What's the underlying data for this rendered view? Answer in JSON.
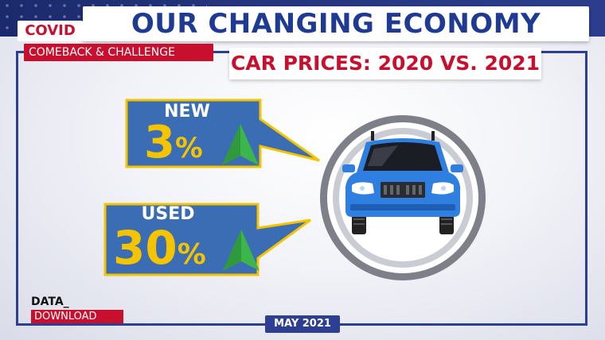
{
  "header": {
    "title": "OUR CHANGING ECONOMY",
    "badge": "COVID",
    "series": "COMEBACK & CHALLENGE"
  },
  "subtitle": "CAR PRICES: 2020 VS. 2021",
  "stats": {
    "new": {
      "label": "NEW",
      "value": "3",
      "unit": "%"
    },
    "used": {
      "label": "USED",
      "value": "30",
      "unit": "%"
    }
  },
  "footer": {
    "brand_top": "DATA_",
    "brand_bottom": "DOWNLOAD",
    "date": "MAY 2021"
  },
  "colors": {
    "navy": "#2c3f93",
    "red": "#c8102e",
    "yellow": "#f5c400",
    "callout_blue": "#3a6db3",
    "arrow_green": "#3cb54a",
    "car_blue": "#2f7fe0"
  },
  "icons": {
    "up_arrow": "up-arrow-icon",
    "car": "car-icon"
  }
}
